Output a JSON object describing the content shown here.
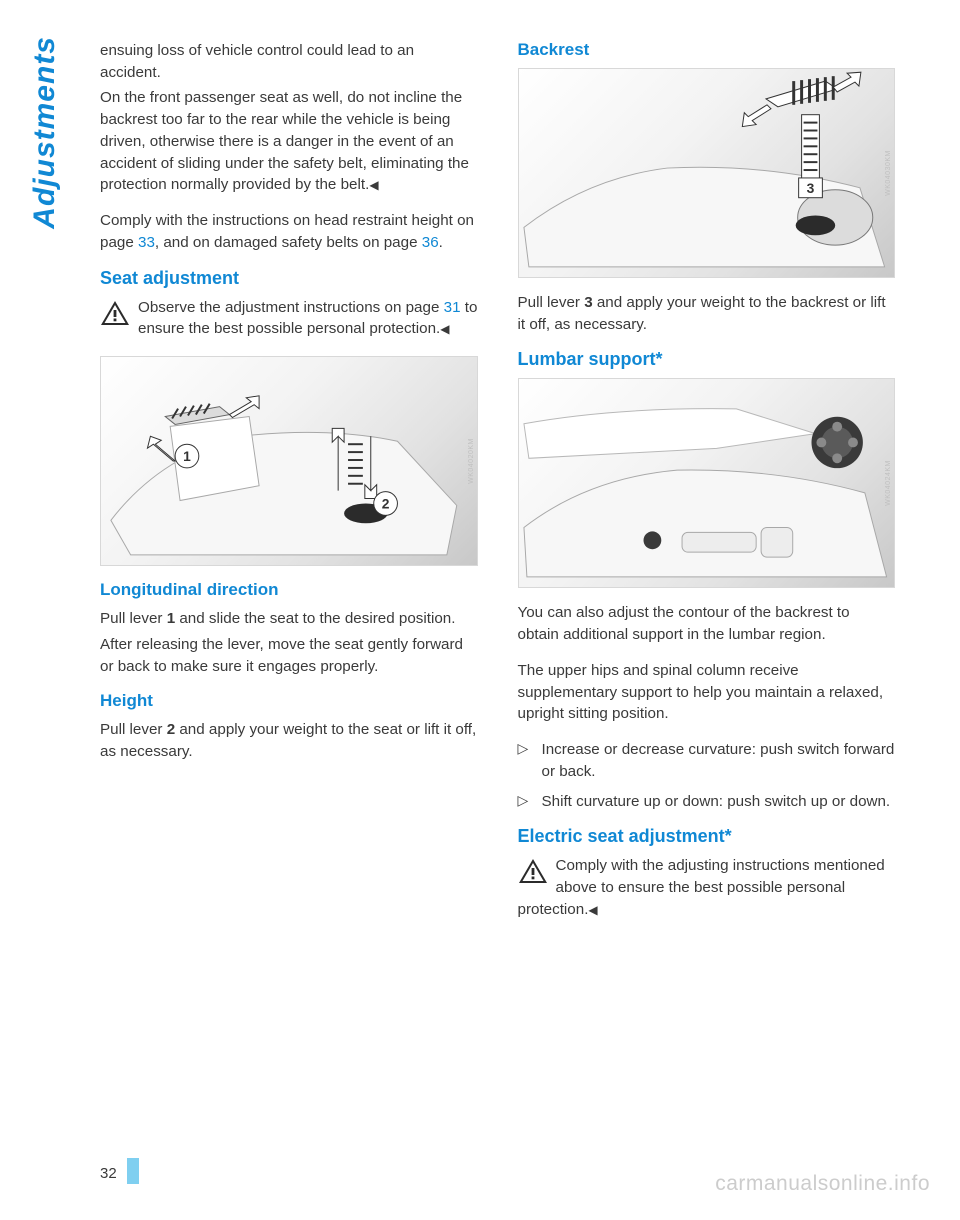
{
  "side_tab": "Adjustments",
  "page_number": "32",
  "watermark": "carmanualsonline.info",
  "left": {
    "intro_p1": "ensuing loss of vehicle control could lead to an accident.",
    "intro_p2_a": "On the front passenger seat as well, do not incline the backrest too far to the rear while the vehicle is being driven, otherwise there is a danger in the event of an accident of sliding under the safety belt, eliminating the protection normally provided by the belt.",
    "intro_p3_a": "Comply with the instructions on head restraint height on page ",
    "intro_p3_link1": "33",
    "intro_p3_b": ", and on damaged safety belts on page ",
    "intro_p3_link2": "36",
    "intro_p3_c": ".",
    "seat_adjustment_h": "Seat adjustment",
    "seat_warn_a": "Observe the adjustment instructions on page ",
    "seat_warn_link": "31",
    "seat_warn_b": " to ensure the best possible personal protection.",
    "diag1_code": "WK04020KM",
    "long_h": "Longitudinal direction",
    "long_p1_a": "Pull lever ",
    "long_p1_bold": "1",
    "long_p1_b": " and slide the seat to the desired position.",
    "long_p2": "After releasing the lever, move the seat gently forward or back to make sure it engages properly.",
    "height_h": "Height",
    "height_p_a": "Pull lever ",
    "height_p_bold": "2",
    "height_p_b": " and apply your weight to the seat or lift it off, as necessary."
  },
  "right": {
    "backrest_h": "Backrest",
    "diag2_code": "WK04030KM",
    "backrest_p_a": "Pull lever ",
    "backrest_p_bold": "3",
    "backrest_p_b": " and apply your weight to the backrest or lift it off, as necessary.",
    "lumbar_h": "Lumbar support*",
    "diag3_code": "WK04024KM",
    "lumbar_p1": "You can also adjust the contour of the backrest to obtain additional support in the lumbar region.",
    "lumbar_p2": "The upper hips and spinal column receive supplementary support to help you maintain a relaxed, upright sitting position.",
    "bullets": [
      "Increase or decrease curvature: push switch forward or back.",
      "Shift curvature up or down: push switch up or down."
    ],
    "electric_h": "Electric seat adjustment*",
    "electric_warn": "Comply with the adjusting instructions mentioned above to ensure the best possible personal protection."
  }
}
